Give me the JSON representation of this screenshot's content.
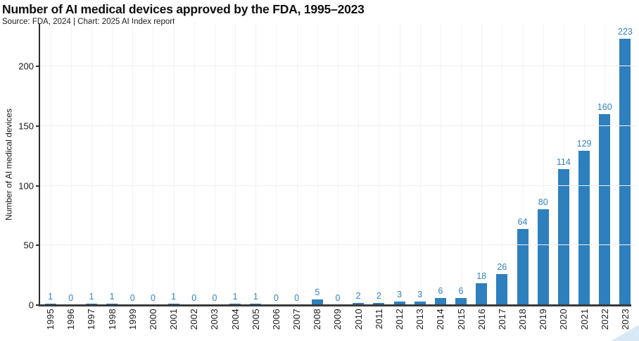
{
  "header": {
    "title": "Number of AI medical devices approved by the FDA, 1995–2023",
    "subtitle": "Source: FDA, 2024 | Chart: 2025 AI Index report"
  },
  "colors": {
    "bar": "#2e7fbd",
    "value_label": "#3285c2",
    "axis": "#3a3a3a",
    "gridline": "#f1f0f4",
    "watermark_triangle": "#d9e8f5",
    "text": "#1a1a1a"
  },
  "chart_data": {
    "type": "bar",
    "title": "Number of AI medical devices approved by the FDA, 1995–2023",
    "subtitle": "Source: FDA, 2024 | Chart: 2025 AI Index report",
    "categories": [
      "1995",
      "1996",
      "1997",
      "1998",
      "1999",
      "2000",
      "2001",
      "2002",
      "2003",
      "2004",
      "2005",
      "2006",
      "2007",
      "2008",
      "2009",
      "2010",
      "2011",
      "2012",
      "2013",
      "2014",
      "2015",
      "2016",
      "2017",
      "2018",
      "2019",
      "2020",
      "2021",
      "2022",
      "2023"
    ],
    "values": [
      1,
      0,
      1,
      1,
      0,
      0,
      1,
      0,
      0,
      1,
      1,
      0,
      0,
      5,
      0,
      2,
      2,
      3,
      3,
      6,
      6,
      18,
      26,
      64,
      80,
      114,
      129,
      160,
      223
    ],
    "xlabel": "",
    "ylabel": "Number of AI medical devices",
    "yticks": [
      0,
      50,
      100,
      150,
      200
    ],
    "ylim": [
      0,
      236
    ],
    "grid": true,
    "legend": "none",
    "value_labels_shown": true
  }
}
